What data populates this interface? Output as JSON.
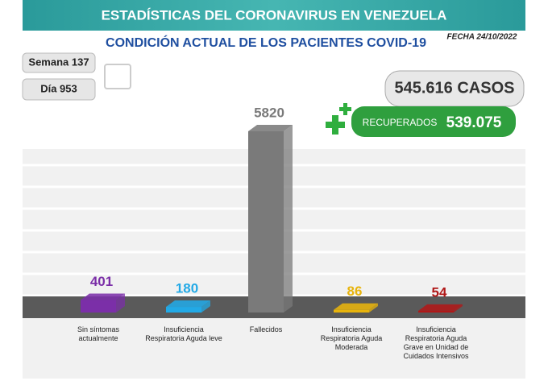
{
  "chart_data": {
    "type": "bar",
    "title": "ESTADÍSTICAS DEL CORONAVIRUS EN VENEZUELA",
    "subtitle": "CONDICIÓN ACTUAL DE LOS PACIENTES COVID-19",
    "date": "FECHA 24/10/2022",
    "week": "Semana 137",
    "day": "Día 953",
    "cases": "545.616 CASOS",
    "recovered_label": "RECUPERADOS",
    "recovered": "539.075",
    "categories": [
      "Sin síntomas actualmente",
      "Insuficiencia Respiratoria Aguda leve",
      "Fallecidos",
      "Insuficiencia Respiratoria Aguda Moderada",
      "Insuficiencia Respiratoria Aguda Grave en Unidad de Cuidados Intensivos"
    ],
    "values": [
      401,
      180,
      5820,
      86,
      54
    ],
    "colors": [
      "#7b2fa8",
      "#22a9e6",
      "#7a7a7a",
      "#e8b40c",
      "#b01818"
    ]
  }
}
